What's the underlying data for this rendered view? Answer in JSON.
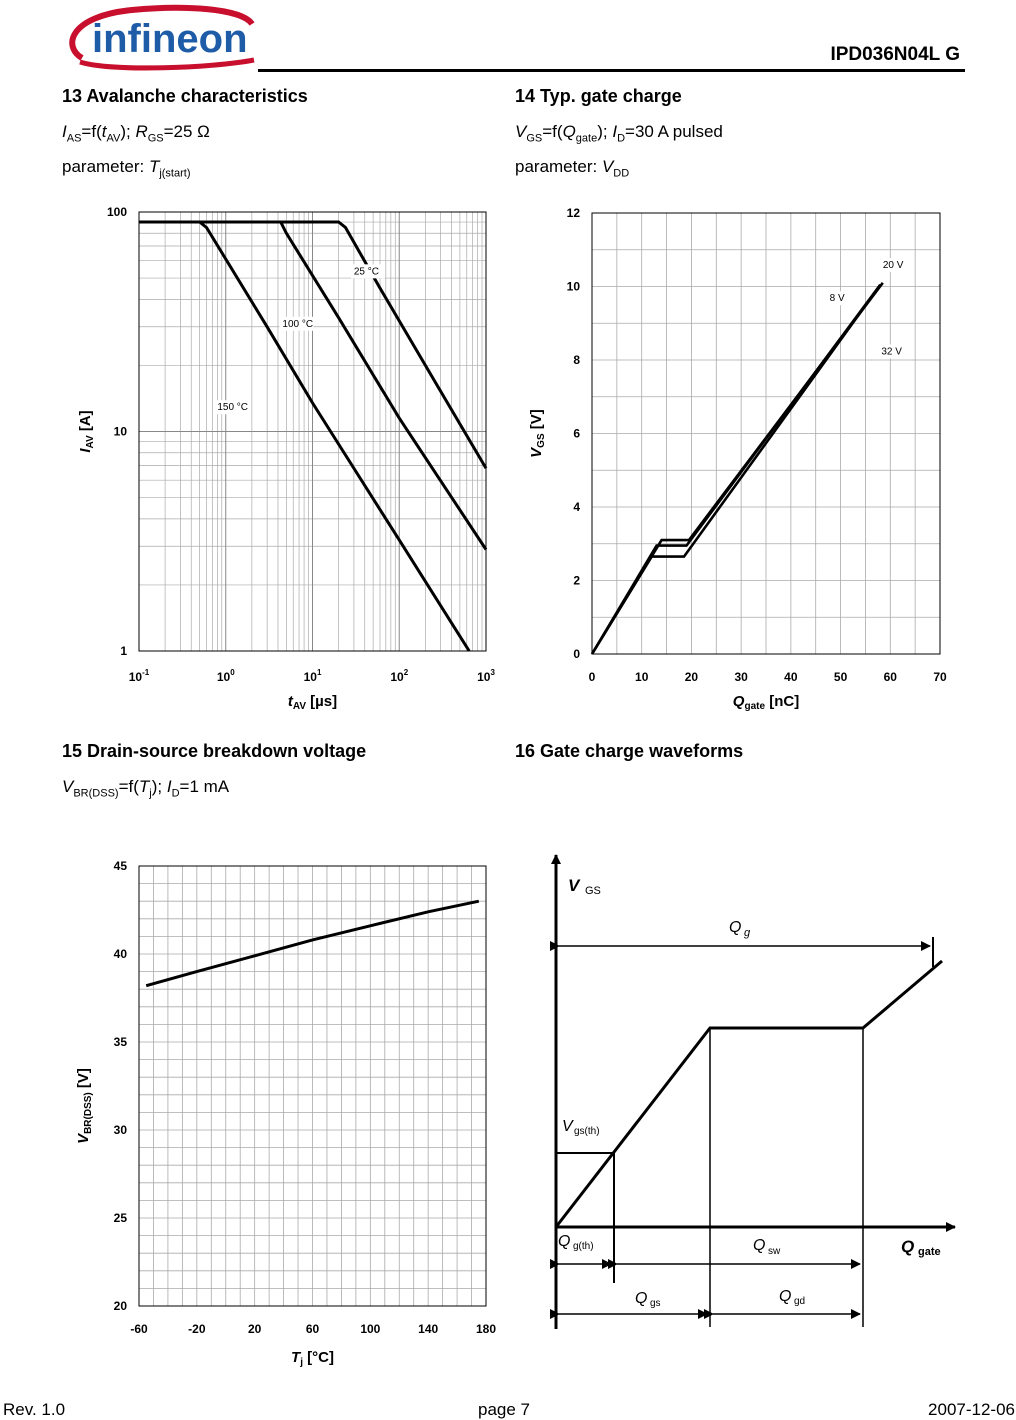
{
  "header": {
    "logo_text": "infineon",
    "part_number": "IPD036N04L G"
  },
  "sections": [
    {
      "title": "13 Avalanche characteristics",
      "formula": {
        "v1": "I",
        "s1": "AS",
        "t1": "=f(",
        "v2": "t",
        "s2": "AV",
        "t2": "); ",
        "v3": "R",
        "s3": "GS",
        "t3": "=25 Ω"
      },
      "param": {
        "label": "parameter: ",
        "v": "T",
        "s": "j(start)"
      }
    },
    {
      "title": "14 Typ. gate charge",
      "formula": {
        "v1": "V",
        "s1": "GS",
        "t1": "=f(",
        "v2": "Q",
        "s2": "gate",
        "t2": "); ",
        "v3": "I",
        "s3": "D",
        "t3": "=30 A pulsed"
      },
      "param": {
        "label": "parameter: ",
        "v": "V",
        "s": "DD"
      }
    },
    {
      "title": "15 Drain-source breakdown voltage",
      "formula": {
        "v1": "V",
        "s1": "BR(DSS)",
        "t1": "=f(",
        "v2": "T",
        "s2": "j",
        "t2": "); ",
        "v3": "I",
        "s3": "D",
        "t3": "=1 mA"
      }
    },
    {
      "title": "16 Gate charge waveforms"
    }
  ],
  "chart_data": [
    {
      "type": "line",
      "title": "13 Avalanche characteristics",
      "x_scale": "log",
      "y_scale": "log",
      "xlim": [
        0.1,
        1000
      ],
      "ylim": [
        1,
        100
      ],
      "x_ticks": [
        {
          "base": "10",
          "exp": "-1",
          "v": 0.1
        },
        {
          "base": "10",
          "exp": "0",
          "v": 1
        },
        {
          "base": "10",
          "exp": "1",
          "v": 10
        },
        {
          "base": "10",
          "exp": "2",
          "v": 100
        },
        {
          "base": "10",
          "exp": "3",
          "v": 1000
        }
      ],
      "y_ticks": [
        {
          "label": "1",
          "v": 1
        },
        {
          "label": "10",
          "v": 10
        },
        {
          "label": "100",
          "v": 100
        }
      ],
      "xlabel": {
        "v": "t",
        "s": "AV",
        "u": " [µs]"
      },
      "ylabel": {
        "v": "I",
        "s": "AV",
        "u": " [A]"
      },
      "series": [
        {
          "name": "150 °C",
          "points": [
            [
              0.1,
              90
            ],
            [
              0.5,
              90
            ],
            [
              0.6,
              85
            ],
            [
              3,
              30
            ],
            [
              10,
              13.5
            ],
            [
              100,
              3.2
            ],
            [
              640,
              1
            ]
          ]
        },
        {
          "name": "100 °C",
          "points": [
            [
              0.1,
              90
            ],
            [
              4.3,
              90
            ],
            [
              5,
              80
            ],
            [
              20,
              33
            ],
            [
              100,
              11.5
            ],
            [
              1000,
              2.9
            ]
          ]
        },
        {
          "name": "25 °C",
          "points": [
            [
              0.1,
              90
            ],
            [
              20,
              90
            ],
            [
              24,
              85
            ],
            [
              60,
              45
            ],
            [
              200,
              20
            ],
            [
              1000,
              6.8
            ]
          ]
        }
      ],
      "annotations": [
        "25 °C",
        "100 °C",
        "150 °C"
      ]
    },
    {
      "type": "line",
      "title": "14 Typ. gate charge",
      "xlim": [
        0,
        70
      ],
      "ylim": [
        0,
        12
      ],
      "x_ticks": [
        0,
        10,
        20,
        30,
        40,
        50,
        60,
        70
      ],
      "y_ticks": [
        0,
        2,
        4,
        6,
        8,
        10,
        12
      ],
      "xlabel": {
        "v": "Q",
        "s": "gate",
        "u": " [nC]"
      },
      "ylabel": {
        "v": "V",
        "s": "GS",
        "u": " [V]"
      },
      "series": [
        {
          "name": "8 V",
          "points": [
            [
              0,
              0
            ],
            [
              14,
              3.1
            ],
            [
              19.5,
              3.1
            ],
            [
              58.5,
              10.1
            ]
          ]
        },
        {
          "name": "20 V",
          "points": [
            [
              0,
              0
            ],
            [
              13,
              2.95
            ],
            [
              19,
              2.95
            ],
            [
              58,
              10.05
            ]
          ]
        },
        {
          "name": "32 V",
          "points": [
            [
              0,
              0
            ],
            [
              12,
              2.65
            ],
            [
              18.5,
              2.65
            ],
            [
              57.5,
              9.95
            ]
          ]
        }
      ],
      "annotations": [
        "20 V",
        "8 V",
        "32 V"
      ]
    },
    {
      "type": "line",
      "title": "15 Drain-source breakdown voltage",
      "xlim": [
        -60,
        180
      ],
      "ylim": [
        20,
        45
      ],
      "x_ticks": [
        -60,
        -20,
        20,
        60,
        100,
        140,
        180
      ],
      "y_ticks": [
        20,
        25,
        30,
        35,
        40,
        45
      ],
      "xlabel": {
        "v": "T",
        "s": "j",
        "u": " [°C]"
      },
      "ylabel": {
        "v": "V",
        "s": "BR(DSS)",
        "u": " [V]"
      },
      "series": [
        {
          "name": "V(BR)DSS",
          "points": [
            [
              -55,
              38.2
            ],
            [
              -20,
              39
            ],
            [
              20,
              39.9
            ],
            [
              60,
              40.8
            ],
            [
              100,
              41.6
            ],
            [
              140,
              42.4
            ],
            [
              175,
              43
            ]
          ]
        }
      ]
    }
  ],
  "waveform": {
    "labels": {
      "vgs": {
        "v": "V",
        "s": "GS"
      },
      "qg": {
        "v": "Q",
        "s": "g"
      },
      "vgs_th": {
        "v": "V",
        "s": "gs(th)"
      },
      "qg_th": {
        "v": "Q",
        "s": "g(th)"
      },
      "qsw": {
        "v": "Q",
        "s": "sw"
      },
      "qgate": {
        "v": "Q",
        "s": "gate"
      },
      "qgs": {
        "v": "Q",
        "s": "gs"
      },
      "qgd": {
        "v": "Q",
        "s": "gd"
      }
    }
  },
  "footer": {
    "rev": "Rev. 1.0",
    "page": "page 7",
    "date": "2007-12-06"
  }
}
